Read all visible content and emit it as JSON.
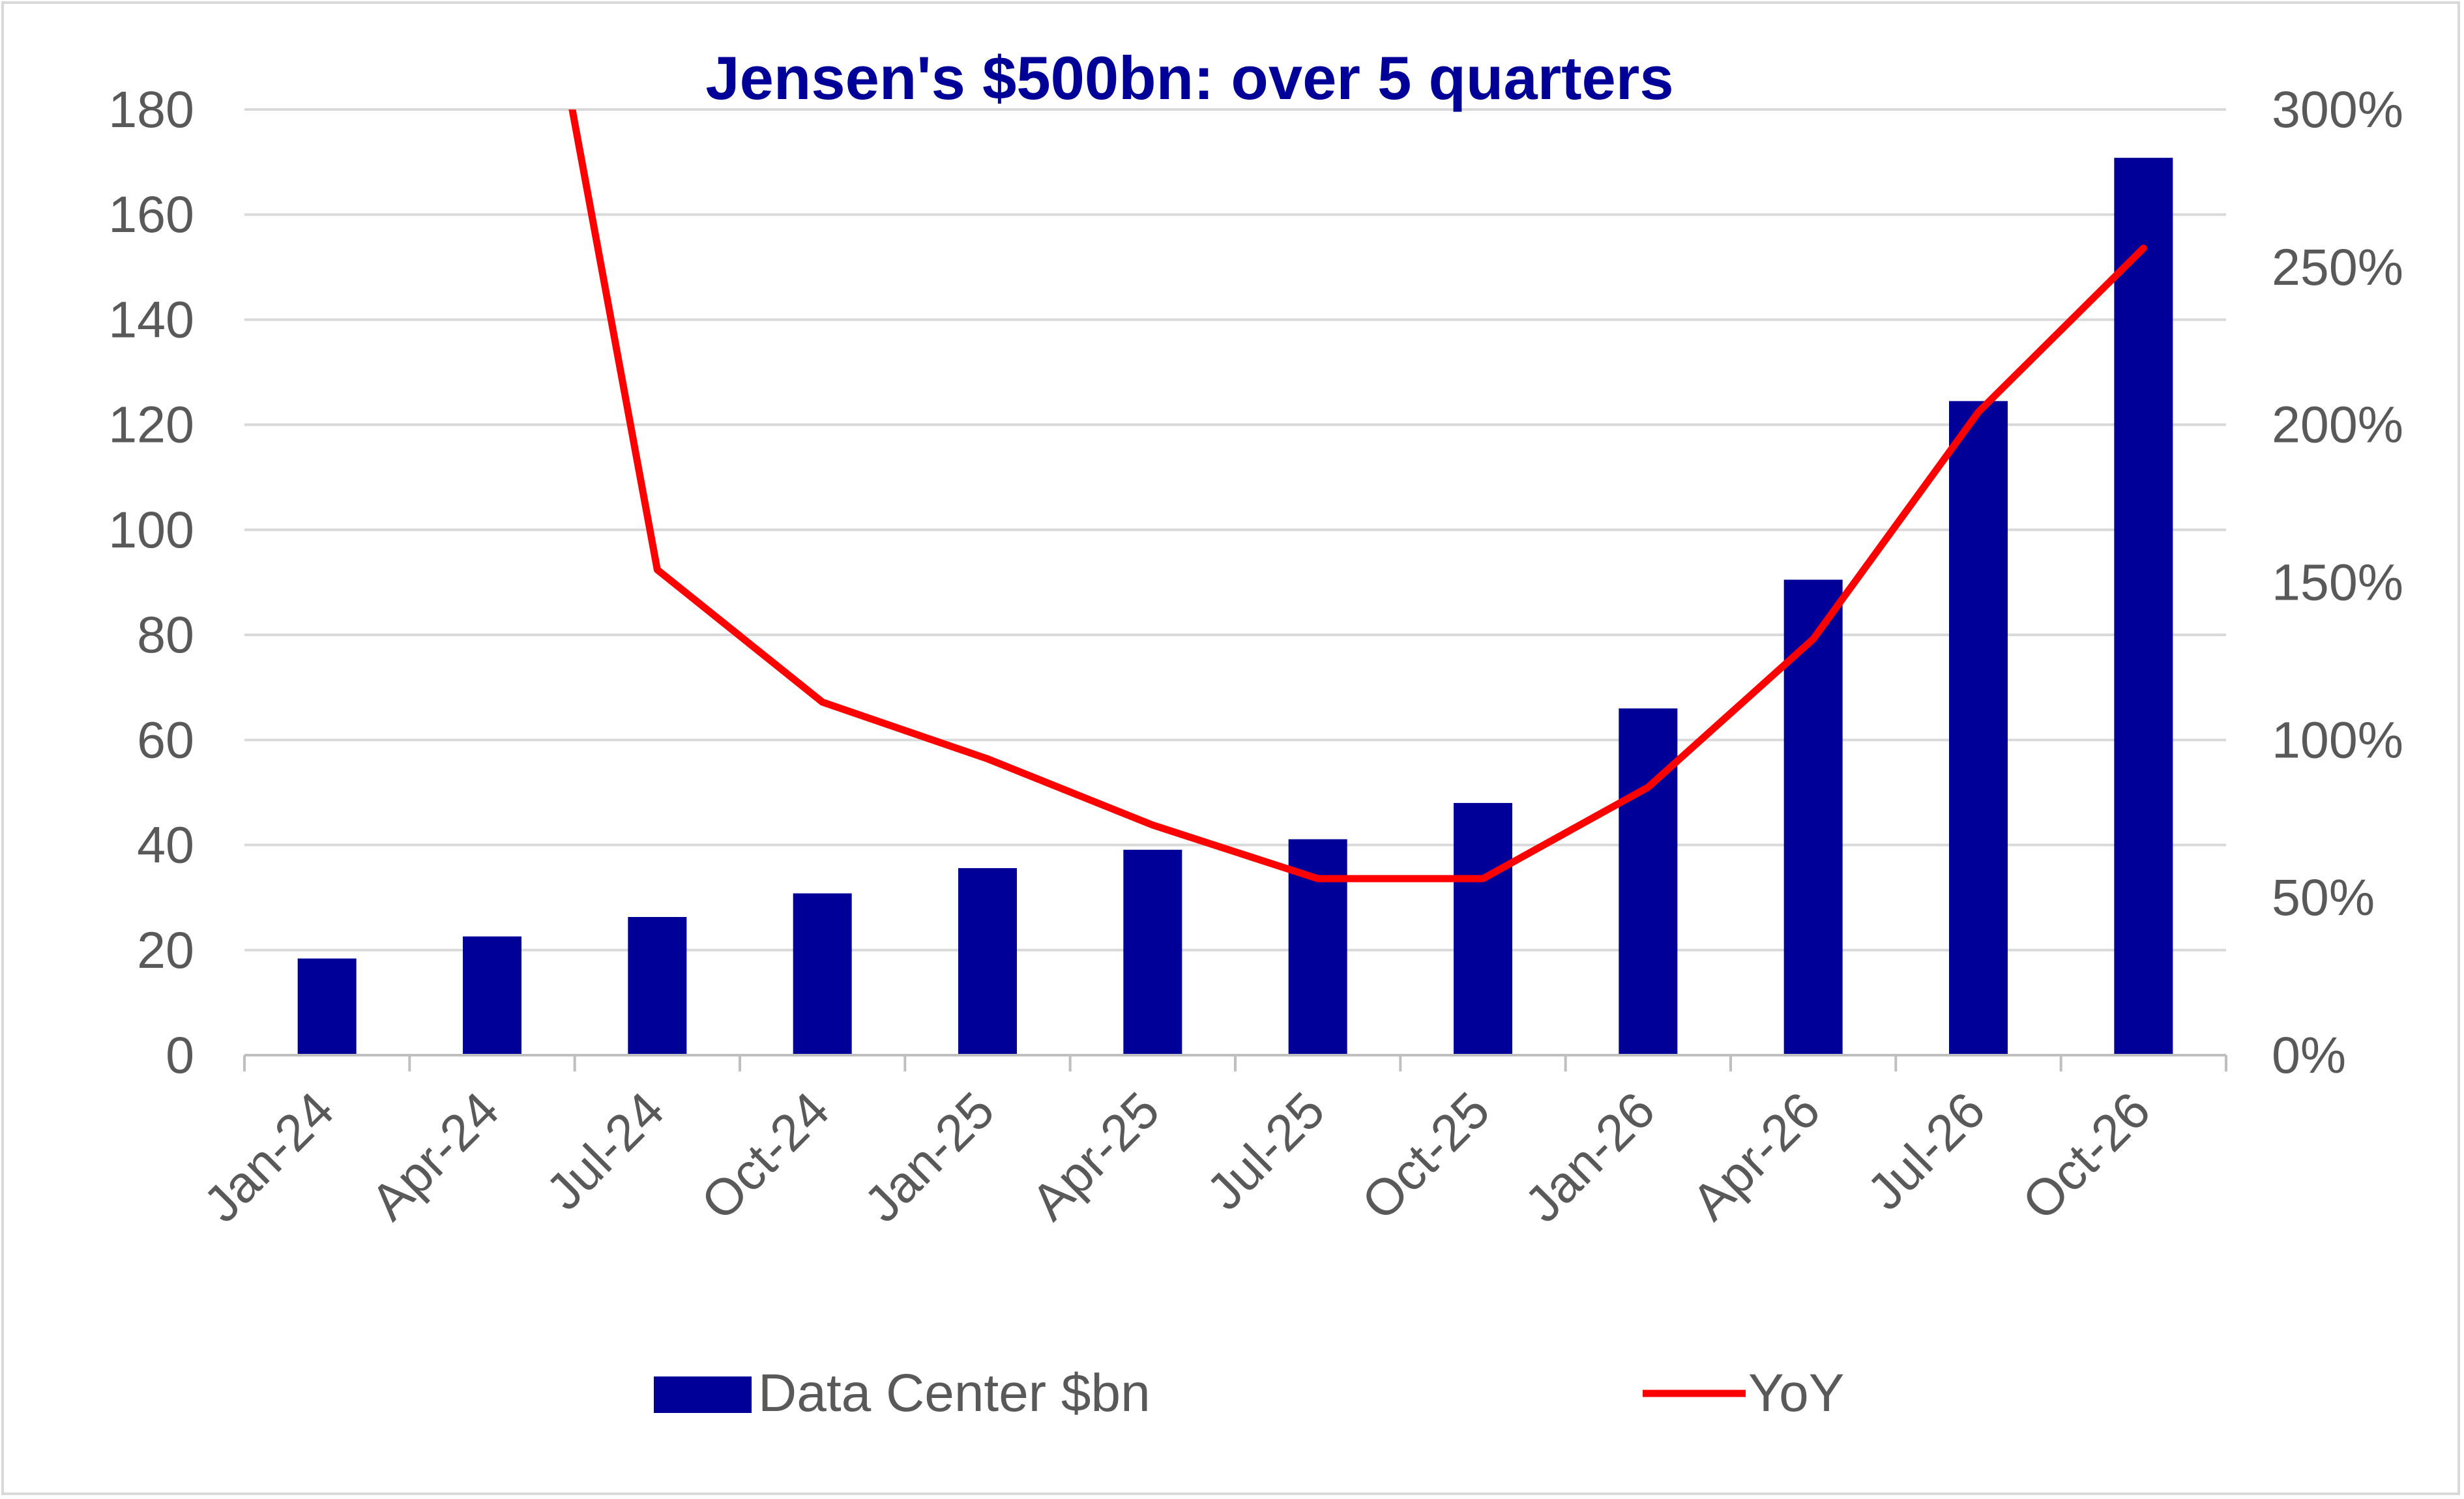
{
  "chart_data": {
    "type": "bar",
    "title": "Jensen's $500bn: over 5 quarters",
    "categories": [
      "Jan-24",
      "Apr-24",
      "Jul-24",
      "Oct-24",
      "Jan-25",
      "Apr-25",
      "Jul-25",
      "Oct-25",
      "Jan-26",
      "Apr-26",
      "Jul-26",
      "Oct-26"
    ],
    "series": [
      {
        "name": "Data Center $bn",
        "type": "bar",
        "axis": "left",
        "color": "#000099",
        "values": [
          18.4,
          22.6,
          26.3,
          30.8,
          35.6,
          39.1,
          41.1,
          48.0,
          66.0,
          90.5,
          124.5,
          170.8
        ]
      },
      {
        "name": "YoY",
        "type": "line",
        "axis": "right",
        "color": "#ff0000",
        "values": [
          null,
          null,
          154,
          112,
          94,
          73,
          56,
          56,
          85,
          132,
          204,
          256
        ]
      }
    ],
    "y_left": {
      "ylim": [
        0,
        180
      ],
      "ticks": [
        "0",
        "20",
        "40",
        "60",
        "80",
        "100",
        "120",
        "140",
        "160",
        "180"
      ]
    },
    "y_right": {
      "ylim": [
        0,
        300
      ],
      "ticks": [
        "0%",
        "50%",
        "100%",
        "150%",
        "200%",
        "250%",
        "300%"
      ]
    },
    "line_start_from_above": 1,
    "xlabel": "",
    "ylabel": "",
    "grid": true,
    "legend_position": "bottom",
    "colors": {
      "title": "#000099",
      "grid": "#d9d9d9",
      "axis": "#bfbfbf",
      "text": "#595959"
    }
  }
}
